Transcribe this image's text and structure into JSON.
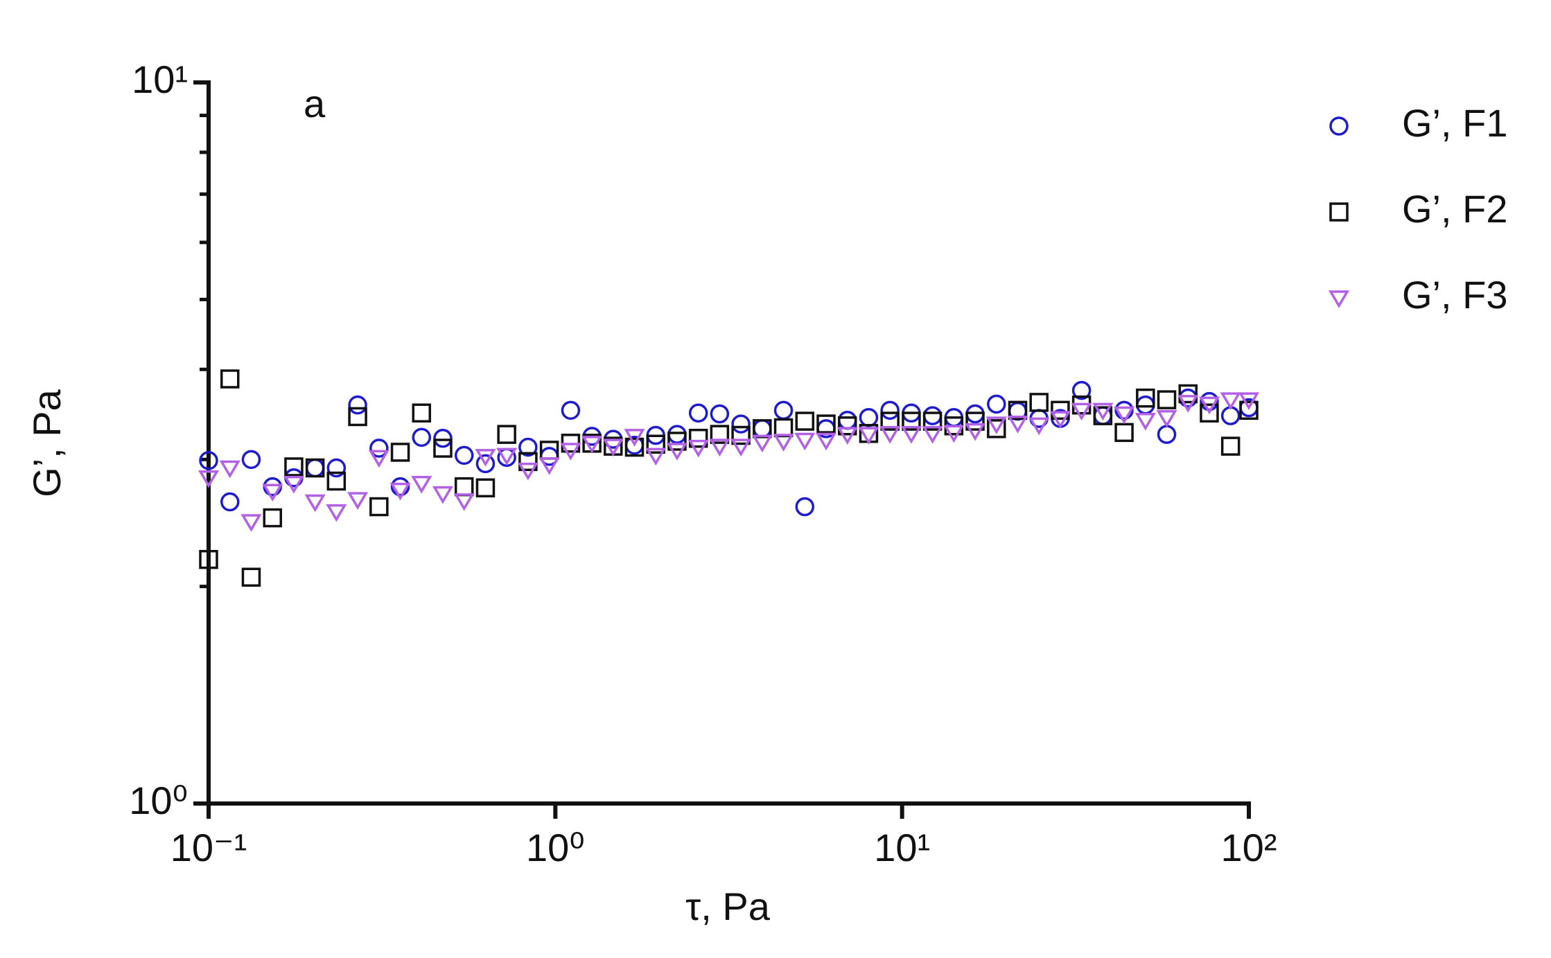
{
  "chart_data": {
    "type": "scatter",
    "annotation": "a",
    "x_label": "τ, Pa",
    "y_label": "G’, Pa",
    "x_scale": "log",
    "y_scale": "log",
    "xlim": [
      0.1,
      100
    ],
    "ylim": [
      1,
      10
    ],
    "xticks": [
      {
        "value": 0.1,
        "label": "10⁻¹"
      },
      {
        "value": 1,
        "label": "10⁰"
      },
      {
        "value": 10,
        "label": "10¹"
      },
      {
        "value": 100,
        "label": "10²"
      }
    ],
    "yticks": [
      {
        "value": 1,
        "label": "10⁰"
      },
      {
        "value": 10,
        "label": "10¹"
      }
    ],
    "yminor": [
      2,
      3,
      4,
      5,
      6,
      7,
      8,
      9
    ],
    "legend": "outside-right",
    "x": [
      0.1,
      0.1152,
      0.1327,
      0.1529,
      0.1761,
      0.2028,
      0.2336,
      0.2691,
      0.31,
      0.3571,
      0.4113,
      0.4737,
      0.5457,
      0.6286,
      0.724,
      0.834,
      0.9607,
      1.107,
      1.275,
      1.468,
      1.691,
      1.948,
      2.244,
      2.585,
      2.977,
      3.429,
      3.95,
      4.55,
      5.241,
      6.037,
      6.954,
      8.01,
      9.226,
      10.63,
      12.24,
      14.1,
      16.24,
      18.71,
      21.55,
      24.82,
      28.59,
      32.93,
      37.93,
      43.69,
      50.33,
      57.97,
      66.77,
      76.91,
      88.59,
      100
    ],
    "series": [
      {
        "name": "G’, F1",
        "color": "#1c1ccc",
        "marker": "circle",
        "values": [
          2.99,
          2.62,
          3.0,
          2.75,
          2.83,
          2.92,
          2.92,
          3.57,
          3.11,
          2.75,
          3.22,
          3.21,
          3.04,
          2.96,
          3.02,
          3.12,
          3.03,
          3.51,
          3.23,
          3.2,
          3.14,
          3.24,
          3.25,
          3.48,
          3.47,
          3.36,
          3.31,
          3.51,
          2.58,
          3.31,
          3.4,
          3.43,
          3.51,
          3.48,
          3.45,
          3.43,
          3.47,
          3.58,
          3.5,
          3.42,
          3.42,
          3.74,
          3.45,
          3.51,
          3.57,
          3.25,
          3.65,
          3.61,
          3.45,
          3.54
        ]
      },
      {
        "name": "G’, F2",
        "color": "#111111",
        "marker": "square",
        "values": [
          2.18,
          3.88,
          2.06,
          2.49,
          2.93,
          2.92,
          2.8,
          3.44,
          2.58,
          3.07,
          3.48,
          3.11,
          2.75,
          2.74,
          3.25,
          2.98,
          3.09,
          3.16,
          3.16,
          3.13,
          3.12,
          3.15,
          3.18,
          3.21,
          3.25,
          3.24,
          3.31,
          3.32,
          3.39,
          3.36,
          3.34,
          3.26,
          3.39,
          3.39,
          3.39,
          3.34,
          3.39,
          3.31,
          3.51,
          3.6,
          3.51,
          3.57,
          3.45,
          3.27,
          3.65,
          3.63,
          3.7,
          3.48,
          3.13,
          3.51
        ]
      },
      {
        "name": "G’, F3",
        "color": "#b260e6",
        "marker": "triangle-down",
        "values": [
          2.83,
          2.92,
          2.46,
          2.71,
          2.78,
          2.62,
          2.54,
          2.64,
          3.02,
          2.72,
          2.78,
          2.69,
          2.63,
          3.03,
          3.04,
          2.9,
          2.95,
          3.09,
          3.16,
          3.13,
          3.23,
          3.04,
          3.09,
          3.12,
          3.13,
          3.13,
          3.17,
          3.18,
          3.19,
          3.19,
          3.25,
          3.25,
          3.26,
          3.26,
          3.26,
          3.27,
          3.29,
          3.36,
          3.37,
          3.35,
          3.42,
          3.51,
          3.51,
          3.47,
          3.4,
          3.43,
          3.6,
          3.58,
          3.63,
          3.63
        ]
      }
    ]
  }
}
